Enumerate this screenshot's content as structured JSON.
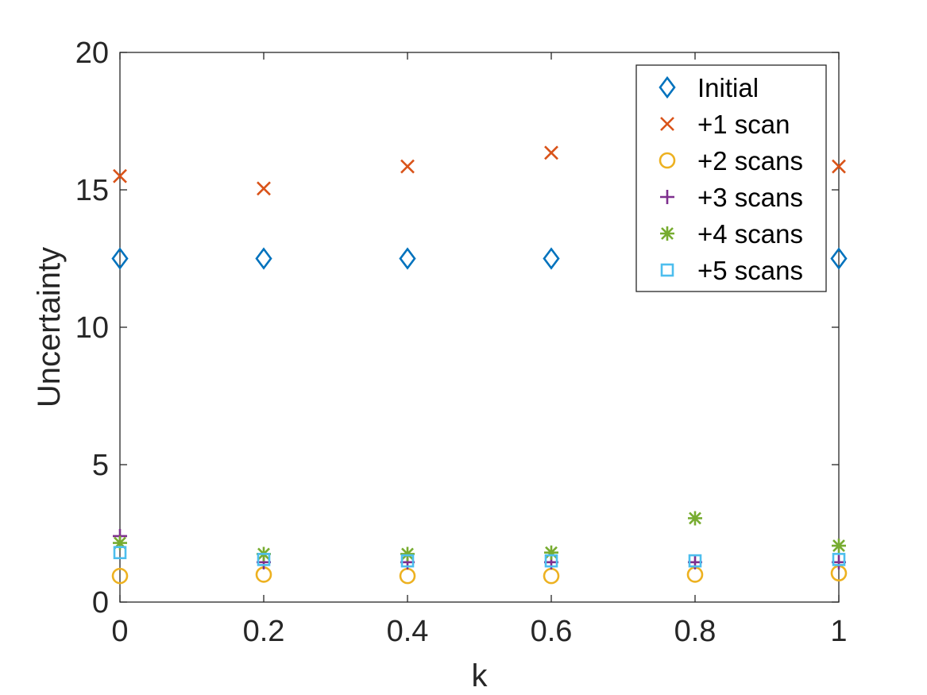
{
  "chart_data": {
    "type": "scatter",
    "title": "",
    "xlabel": "k",
    "ylabel": "Uncertainty",
    "xlim": [
      0,
      1
    ],
    "ylim": [
      0,
      20
    ],
    "xticks": [
      0,
      0.2,
      0.4,
      0.6,
      0.8,
      1
    ],
    "xtick_labels": [
      "0",
      "0.2",
      "0.4",
      "0.6",
      "0.8",
      "1"
    ],
    "yticks": [
      0,
      5,
      10,
      15,
      20
    ],
    "ytick_labels": [
      "0",
      "5",
      "10",
      "15",
      "20"
    ],
    "grid": false,
    "legend_position": "top-right",
    "x": [
      0,
      0.2,
      0.4,
      0.6,
      0.8,
      1
    ],
    "series": [
      {
        "name": "Initial",
        "marker": "diamond",
        "color": "#0072BD",
        "values": [
          12.5,
          12.5,
          12.5,
          12.5,
          null,
          12.5
        ]
      },
      {
        "name": "+1 scan",
        "marker": "x",
        "color": "#D95319",
        "values": [
          15.5,
          15.05,
          15.85,
          16.35,
          null,
          15.85
        ]
      },
      {
        "name": "+2 scans",
        "marker": "circle",
        "color": "#EDB120",
        "values": [
          0.95,
          1.0,
          0.95,
          0.95,
          1.0,
          1.05
        ]
      },
      {
        "name": "+3 scans",
        "marker": "plus",
        "color": "#7E2F8E",
        "values": [
          2.4,
          1.45,
          1.45,
          1.45,
          1.45,
          1.45
        ]
      },
      {
        "name": "+4 scans",
        "marker": "asterisk",
        "color": "#77AC30",
        "values": [
          2.15,
          1.75,
          1.75,
          1.8,
          3.05,
          2.05
        ]
      },
      {
        "name": "+5 scans",
        "marker": "square",
        "color": "#4DBEEE",
        "values": [
          1.8,
          1.55,
          1.5,
          1.5,
          1.5,
          1.55
        ]
      }
    ]
  }
}
